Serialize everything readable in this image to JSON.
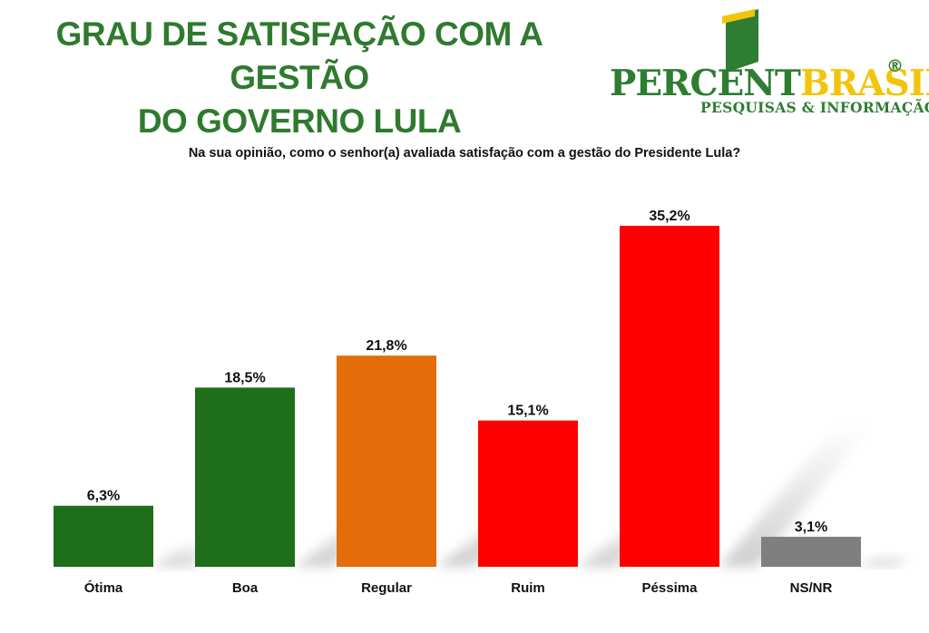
{
  "header": {
    "title_line1": "GRAU DE SATISFAÇÃO COM A GESTÃO",
    "title_line2": "DO GOVERNO LULA",
    "question": "Na sua opinião, como o senhor(a) avaliada satisfação com a gestão do Presidente Lula?"
  },
  "logo": {
    "word_part1": "PERCENT",
    "word_part2": "BRASIL",
    "registered": "®",
    "tagline": "PESQUISAS & INFORMAÇÃO"
  },
  "chart_data": {
    "type": "bar",
    "categories": [
      "Ótima",
      "Boa",
      "Regular",
      "Ruim",
      "Péssima",
      "NS/NR"
    ],
    "values": [
      6.3,
      18.5,
      21.8,
      15.1,
      35.2,
      3.1
    ],
    "data_labels": [
      "6,3%",
      "18,5%",
      "21,8%",
      "15,1%",
      "35,2%",
      "3,1%"
    ],
    "colors": [
      "#1f6e1a",
      "#1f6e1a",
      "#e46c0a",
      "#ff0000",
      "#ff0000",
      "#7f7f7f"
    ],
    "ylim": [
      0,
      35.2
    ],
    "grid": false,
    "legend": "none"
  }
}
